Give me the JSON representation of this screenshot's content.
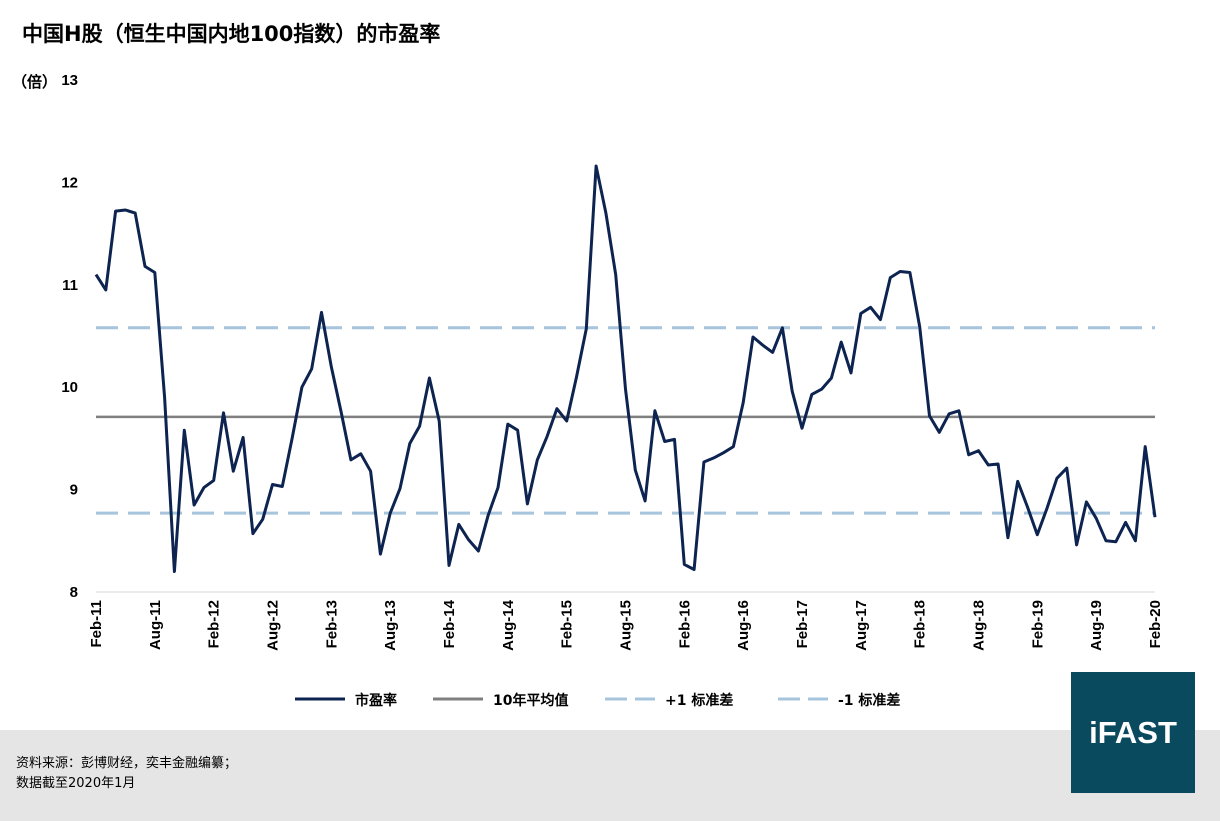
{
  "header": {
    "title": "中国H股（恒生中国内地100指数）的市盈率",
    "unit_label": "（倍）"
  },
  "footer": {
    "source_line1": "资料来源：彭博财经，奕丰金融编纂；",
    "source_line2": "数据截至2020年1月"
  },
  "logo": {
    "text": "iFAST",
    "color": "#0a4a5e"
  },
  "chart_data": {
    "type": "line",
    "ylim": [
      8,
      13
    ],
    "yticks": [
      8,
      9,
      10,
      11,
      12,
      13
    ],
    "xticks": [
      "Feb-11",
      "Aug-11",
      "Feb-12",
      "Aug-12",
      "Feb-13",
      "Aug-13",
      "Feb-14",
      "Aug-14",
      "Feb-15",
      "Aug-15",
      "Feb-16",
      "Aug-16",
      "Feb-17",
      "Aug-17",
      "Feb-18",
      "Aug-18",
      "Feb-19",
      "Aug-19",
      "Feb-20"
    ],
    "start": "2011-02",
    "grid": false,
    "legend_position": "bottom",
    "series": [
      {
        "name": "市盈率",
        "style": "solid",
        "color": "#0d2350",
        "values": [
          11.1,
          10.95,
          11.72,
          11.73,
          11.7,
          11.18,
          11.12,
          9.9,
          8.2,
          9.58,
          8.85,
          9.02,
          9.09,
          9.75,
          9.18,
          9.51,
          8.57,
          8.71,
          9.05,
          9.03,
          9.5,
          10.0,
          10.18,
          10.73,
          10.2,
          9.76,
          9.29,
          9.35,
          9.18,
          8.37,
          8.77,
          9.01,
          9.45,
          9.62,
          10.09,
          9.67,
          8.26,
          8.66,
          8.51,
          8.4,
          8.75,
          9.02,
          9.64,
          9.58,
          8.86,
          9.29,
          9.52,
          9.79,
          9.67,
          10.1,
          10.57,
          12.16,
          11.7,
          11.1,
          9.98,
          9.19,
          8.89,
          9.77,
          9.47,
          9.49,
          8.27,
          8.22,
          9.27,
          9.31,
          9.36,
          9.42,
          9.85,
          10.49,
          10.41,
          10.34,
          10.58,
          9.96,
          9.6,
          9.93,
          9.98,
          10.09,
          10.44,
          10.14,
          10.72,
          10.78,
          10.66,
          11.07,
          11.13,
          11.12,
          10.59,
          9.72,
          9.56,
          9.74,
          9.77,
          9.34,
          9.38,
          9.24,
          9.25,
          8.53,
          9.08,
          8.83,
          8.56,
          8.82,
          9.11,
          9.21,
          8.46,
          8.88,
          8.72,
          8.5,
          8.49,
          8.68,
          8.5,
          9.42,
          8.73
        ]
      },
      {
        "name": "10年平均值",
        "style": "solid",
        "color": "#7f7f7f",
        "value": 9.71
      },
      {
        "name": "+1 标准差",
        "style": "dashed",
        "color": "#a6c4dc",
        "value": 10.58
      },
      {
        "name": "-1 标准差",
        "style": "dashed",
        "color": "#a6c4dc",
        "value": 8.77
      }
    ]
  }
}
